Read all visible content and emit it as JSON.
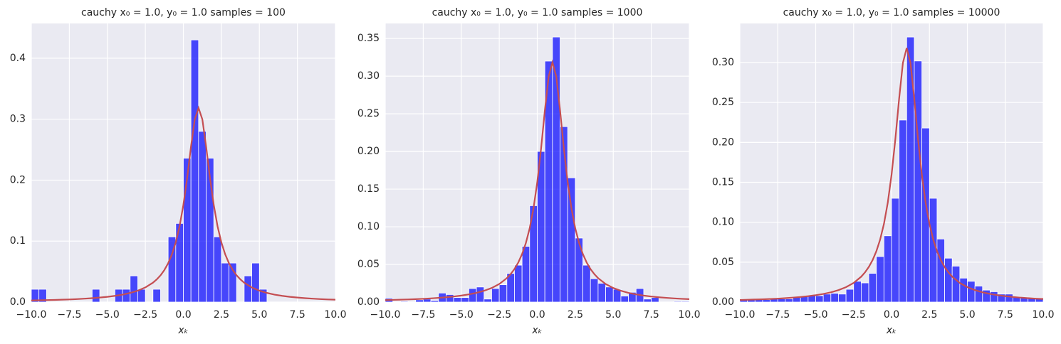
{
  "chart_data": [
    {
      "type": "histogram",
      "title": "cauchy x₀ = 1.0, y₀ = 1.0  samples = 100",
      "xlabel": "xₖ",
      "bins": [
        -10,
        -9.5,
        -9,
        -8.5,
        -8,
        -7.5,
        -7,
        -6.5,
        -6,
        -5.5,
        -5,
        -4.5,
        -4,
        -3.5,
        -3,
        -2.5,
        -2,
        -1.5,
        -1,
        -0.5,
        0,
        0.5,
        1,
        1.5,
        2,
        2.5,
        3,
        3.5,
        4,
        4.5,
        5,
        5.5,
        6,
        6.5,
        7,
        7.5,
        8,
        8.5,
        9,
        9.5,
        10
      ],
      "values": [
        0.021,
        0.021,
        0,
        0,
        0,
        0,
        0,
        0,
        0.021,
        0,
        0,
        0.021,
        0.021,
        0.043,
        0.021,
        0,
        0.021,
        0,
        0.107,
        0.129,
        0.236,
        0.43,
        0.28,
        0.236,
        0.107,
        0.064,
        0.064,
        0,
        0.043,
        0.064,
        0.021,
        0,
        0,
        0,
        0,
        0,
        0,
        0,
        0,
        0
      ],
      "color": "#0000ff",
      "curve": {
        "x": [
          -10,
          -9.5,
          -9,
          -8.5,
          -8,
          -7.5,
          -7,
          -6.5,
          -6,
          -5.5,
          -5,
          -4.5,
          -4,
          -3.5,
          -3,
          -2.5,
          -2,
          -1.75,
          -1.5,
          -1.25,
          -1,
          -0.75,
          -0.5,
          -0.25,
          0,
          0.25,
          0.5,
          0.75,
          1,
          1.25,
          1.5,
          1.75,
          2,
          2.25,
          2.5,
          2.75,
          3,
          3.25,
          3.5,
          3.75,
          4,
          4.5,
          5,
          5.5,
          6,
          6.5,
          7,
          7.5,
          8,
          8.5,
          9,
          9.5,
          10
        ],
        "values": [
          0.0026,
          0.0029,
          0.0032,
          0.0035,
          0.0039,
          0.0043,
          0.0049,
          0.0056,
          0.0064,
          0.0074,
          0.0086,
          0.0102,
          0.0122,
          0.015,
          0.0187,
          0.024,
          0.0318,
          0.0372,
          0.0439,
          0.0525,
          0.0637,
          0.0784,
          0.0979,
          0.1242,
          0.1592,
          0.2037,
          0.2546,
          0.2996,
          0.3183,
          0.2996,
          0.2546,
          0.2037,
          0.1592,
          0.1242,
          0.0979,
          0.0784,
          0.0637,
          0.0525,
          0.0439,
          0.0372,
          0.0318,
          0.024,
          0.0187,
          0.015,
          0.0122,
          0.0102,
          0.0086,
          0.0074,
          0.0064,
          0.0056,
          0.0049,
          0.0043,
          0.0039
        ],
        "color": "#c44e52"
      },
      "xlim": [
        -10,
        10
      ],
      "xticks": [
        {
          "value": -10,
          "label": "−10.0"
        },
        {
          "value": -7.5,
          "label": "−7.5"
        },
        {
          "value": -5,
          "label": "−5.0"
        },
        {
          "value": -2.5,
          "label": "−2.5"
        },
        {
          "value": 0,
          "label": "0.0"
        },
        {
          "value": 2.5,
          "label": "2.5"
        },
        {
          "value": 5,
          "label": "5.0"
        },
        {
          "value": 7.5,
          "label": "7.5"
        },
        {
          "value": 10,
          "label": "10.0"
        }
      ],
      "ylim": [
        0,
        0.457
      ],
      "yticks": [
        {
          "value": 0,
          "label": "0.0"
        },
        {
          "value": 0.1,
          "label": "0.1"
        },
        {
          "value": 0.2,
          "label": "0.2"
        },
        {
          "value": 0.3,
          "label": "0.3"
        },
        {
          "value": 0.4,
          "label": "0.4"
        }
      ],
      "grid": true
    },
    {
      "type": "histogram",
      "title": "cauchy x₀ = 1.0, y₀ = 1.0  samples = 1000",
      "xlabel": "xₖ",
      "bins": [
        -10,
        -9.5,
        -9,
        -8.5,
        -8,
        -7.5,
        -7,
        -6.5,
        -6,
        -5.5,
        -5,
        -4.5,
        -4,
        -3.5,
        -3,
        -2.5,
        -2,
        -1.5,
        -1,
        -0.5,
        0,
        0.5,
        1,
        1.5,
        2,
        2.5,
        3,
        3.5,
        4,
        4.5,
        5,
        5.5,
        6,
        6.5,
        7,
        7.5,
        8,
        8.5,
        9,
        9.5,
        10
      ],
      "values": [
        0.005,
        0,
        0.001,
        0,
        0.003,
        0.004,
        0.002,
        0.012,
        0.01,
        0.006,
        0.006,
        0.018,
        0.02,
        0.004,
        0.018,
        0.023,
        0.038,
        0.049,
        0.074,
        0.128,
        0.2,
        0.32,
        0.352,
        0.233,
        0.165,
        0.085,
        0.049,
        0.031,
        0.025,
        0.02,
        0.017,
        0.008,
        0.013,
        0.018,
        0.004,
        0.006,
        0,
        0,
        0.001,
        0.001
      ],
      "color": "#0000ff",
      "curve": {
        "x": [
          -10,
          -9.5,
          -9,
          -8.5,
          -8,
          -7.5,
          -7,
          -6.5,
          -6,
          -5.5,
          -5,
          -4.5,
          -4,
          -3.5,
          -3,
          -2.5,
          -2,
          -1.75,
          -1.5,
          -1.25,
          -1,
          -0.75,
          -0.5,
          -0.25,
          0,
          0.25,
          0.5,
          0.75,
          1,
          1.25,
          1.5,
          1.75,
          2,
          2.25,
          2.5,
          2.75,
          3,
          3.25,
          3.5,
          3.75,
          4,
          4.5,
          5,
          5.5,
          6,
          6.5,
          7,
          7.5,
          8,
          8.5,
          9,
          9.5,
          10
        ],
        "values": [
          0.0026,
          0.0029,
          0.0032,
          0.0035,
          0.0039,
          0.0043,
          0.0049,
          0.0056,
          0.0064,
          0.0074,
          0.0086,
          0.0102,
          0.0122,
          0.015,
          0.0187,
          0.024,
          0.0318,
          0.0372,
          0.0439,
          0.0525,
          0.0637,
          0.0784,
          0.0979,
          0.1242,
          0.1592,
          0.2037,
          0.2546,
          0.2996,
          0.3183,
          0.2996,
          0.2546,
          0.2037,
          0.1592,
          0.1242,
          0.0979,
          0.0784,
          0.0637,
          0.0525,
          0.0439,
          0.0372,
          0.0318,
          0.024,
          0.0187,
          0.015,
          0.0122,
          0.0102,
          0.0086,
          0.0074,
          0.0064,
          0.0056,
          0.0049,
          0.0043,
          0.0039
        ],
        "color": "#c44e52"
      },
      "xlim": [
        -10,
        10
      ],
      "xticks": [
        {
          "value": -10,
          "label": "−10.0"
        },
        {
          "value": -7.5,
          "label": "−7.5"
        },
        {
          "value": -5,
          "label": "−5.0"
        },
        {
          "value": -2.5,
          "label": "−2.5"
        },
        {
          "value": 0,
          "label": "0.0"
        },
        {
          "value": 2.5,
          "label": "2.5"
        },
        {
          "value": 5,
          "label": "5.0"
        },
        {
          "value": 7.5,
          "label": "7.5"
        },
        {
          "value": 10,
          "label": "10.0"
        }
      ],
      "ylim": [
        0,
        0.37
      ],
      "yticks": [
        {
          "value": 0,
          "label": "0.00"
        },
        {
          "value": 0.05,
          "label": "0.05"
        },
        {
          "value": 0.1,
          "label": "0.10"
        },
        {
          "value": 0.15,
          "label": "0.15"
        },
        {
          "value": 0.2,
          "label": "0.20"
        },
        {
          "value": 0.25,
          "label": "0.25"
        },
        {
          "value": 0.3,
          "label": "0.30"
        },
        {
          "value": 0.35,
          "label": "0.35"
        }
      ],
      "grid": true
    },
    {
      "type": "histogram",
      "title": "cauchy x₀ = 1.0, y₀ = 1.0  samples = 10000",
      "xlabel": "xₖ",
      "bins": [
        -10,
        -9.5,
        -9,
        -8.5,
        -8,
        -7.5,
        -7,
        -6.5,
        -6,
        -5.5,
        -5,
        -4.5,
        -4,
        -3.5,
        -3,
        -2.5,
        -2,
        -1.5,
        -1,
        -0.5,
        0,
        0.5,
        1,
        1.5,
        2,
        2.5,
        3,
        3.5,
        4,
        4.5,
        5,
        5.5,
        6,
        6.5,
        7,
        7.5,
        8,
        8.5,
        9,
        9.5,
        10
      ],
      "values": [
        0.003,
        0.003,
        0.004,
        0.003,
        0.005,
        0.004,
        0.004,
        0.006,
        0.007,
        0.008,
        0.008,
        0.01,
        0.011,
        0.01,
        0.016,
        0.026,
        0.024,
        0.036,
        0.057,
        0.083,
        0.13,
        0.228,
        0.332,
        0.302,
        0.218,
        0.13,
        0.079,
        0.055,
        0.045,
        0.03,
        0.026,
        0.02,
        0.015,
        0.013,
        0.01,
        0.01,
        0.007,
        0.006,
        0.005,
        0.005
      ],
      "color": "#0000ff",
      "curve": {
        "x": [
          -10,
          -9.5,
          -9,
          -8.5,
          -8,
          -7.5,
          -7,
          -6.5,
          -6,
          -5.5,
          -5,
          -4.5,
          -4,
          -3.5,
          -3,
          -2.5,
          -2,
          -1.75,
          -1.5,
          -1.25,
          -1,
          -0.75,
          -0.5,
          -0.25,
          0,
          0.25,
          0.5,
          0.75,
          1,
          1.25,
          1.5,
          1.75,
          2,
          2.25,
          2.5,
          2.75,
          3,
          3.25,
          3.5,
          3.75,
          4,
          4.5,
          5,
          5.5,
          6,
          6.5,
          7,
          7.5,
          8,
          8.5,
          9,
          9.5,
          10
        ],
        "values": [
          0.0026,
          0.0029,
          0.0032,
          0.0035,
          0.0039,
          0.0043,
          0.0049,
          0.0056,
          0.0064,
          0.0074,
          0.0086,
          0.0102,
          0.0122,
          0.015,
          0.0187,
          0.024,
          0.0318,
          0.0372,
          0.0439,
          0.0525,
          0.0637,
          0.0784,
          0.0979,
          0.1242,
          0.1592,
          0.2037,
          0.2546,
          0.2996,
          0.3183,
          0.2996,
          0.2546,
          0.2037,
          0.1592,
          0.1242,
          0.0979,
          0.0784,
          0.0637,
          0.0525,
          0.0439,
          0.0372,
          0.0318,
          0.024,
          0.0187,
          0.015,
          0.0122,
          0.0102,
          0.0086,
          0.0074,
          0.0064,
          0.0056,
          0.0049,
          0.0043,
          0.0039
        ],
        "color": "#c44e52"
      },
      "xlim": [
        -10,
        10
      ],
      "xticks": [
        {
          "value": -10,
          "label": "−10.0"
        },
        {
          "value": -7.5,
          "label": "−7.5"
        },
        {
          "value": -5,
          "label": "−5.0"
        },
        {
          "value": -2.5,
          "label": "−2.5"
        },
        {
          "value": 0,
          "label": "0.0"
        },
        {
          "value": 2.5,
          "label": "2.5"
        },
        {
          "value": 5,
          "label": "5.0"
        },
        {
          "value": 7.5,
          "label": "7.5"
        },
        {
          "value": 10,
          "label": "10.0"
        }
      ],
      "ylim": [
        0,
        0.349
      ],
      "yticks": [
        {
          "value": 0,
          "label": "0.00"
        },
        {
          "value": 0.05,
          "label": "0.05"
        },
        {
          "value": 0.1,
          "label": "0.10"
        },
        {
          "value": 0.15,
          "label": "0.15"
        },
        {
          "value": 0.2,
          "label": "0.20"
        },
        {
          "value": 0.25,
          "label": "0.25"
        },
        {
          "value": 0.3,
          "label": "0.30"
        }
      ],
      "grid": true
    }
  ]
}
